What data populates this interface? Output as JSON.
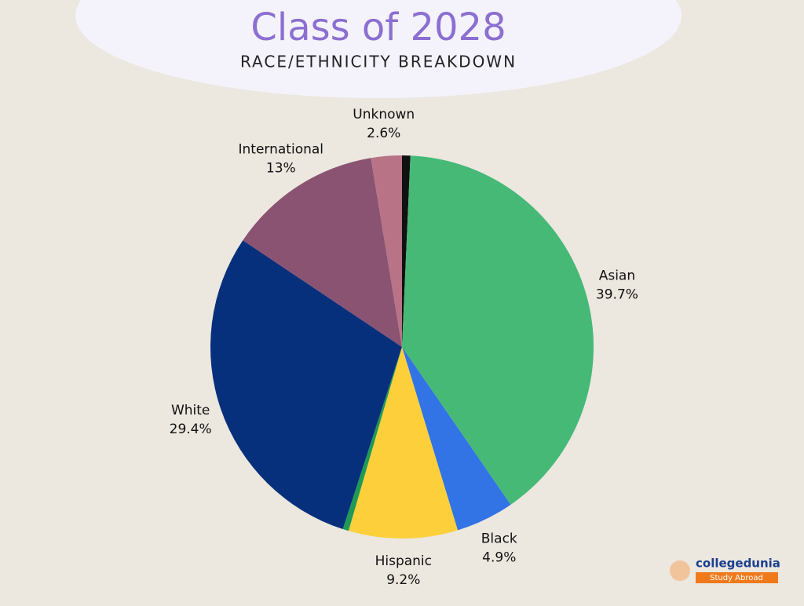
{
  "chart_data": {
    "type": "pie",
    "title": "Class of 2028",
    "subtitle": "RACE/ETHNICITY BREAKDOWN",
    "categories": [
      null,
      "Asian",
      "Black",
      "Hispanic",
      null,
      "White",
      "International",
      "Unknown"
    ],
    "values": [
      0.7,
      39.7,
      4.9,
      9.2,
      0.5,
      29.4,
      13,
      2.6
    ],
    "value_labels": [
      null,
      "39.7%",
      "4.9%",
      "9.2%",
      null,
      "29.4%",
      "13%",
      "2.6%"
    ],
    "colors": [
      "#111111",
      "#46b977",
      "#3273e6",
      "#fdd03b",
      "#1f9a55",
      "#07307c",
      "#8a5372",
      "#b87386"
    ]
  },
  "branding": {
    "name": "collegedunia",
    "tagline": "Study Abroad"
  }
}
